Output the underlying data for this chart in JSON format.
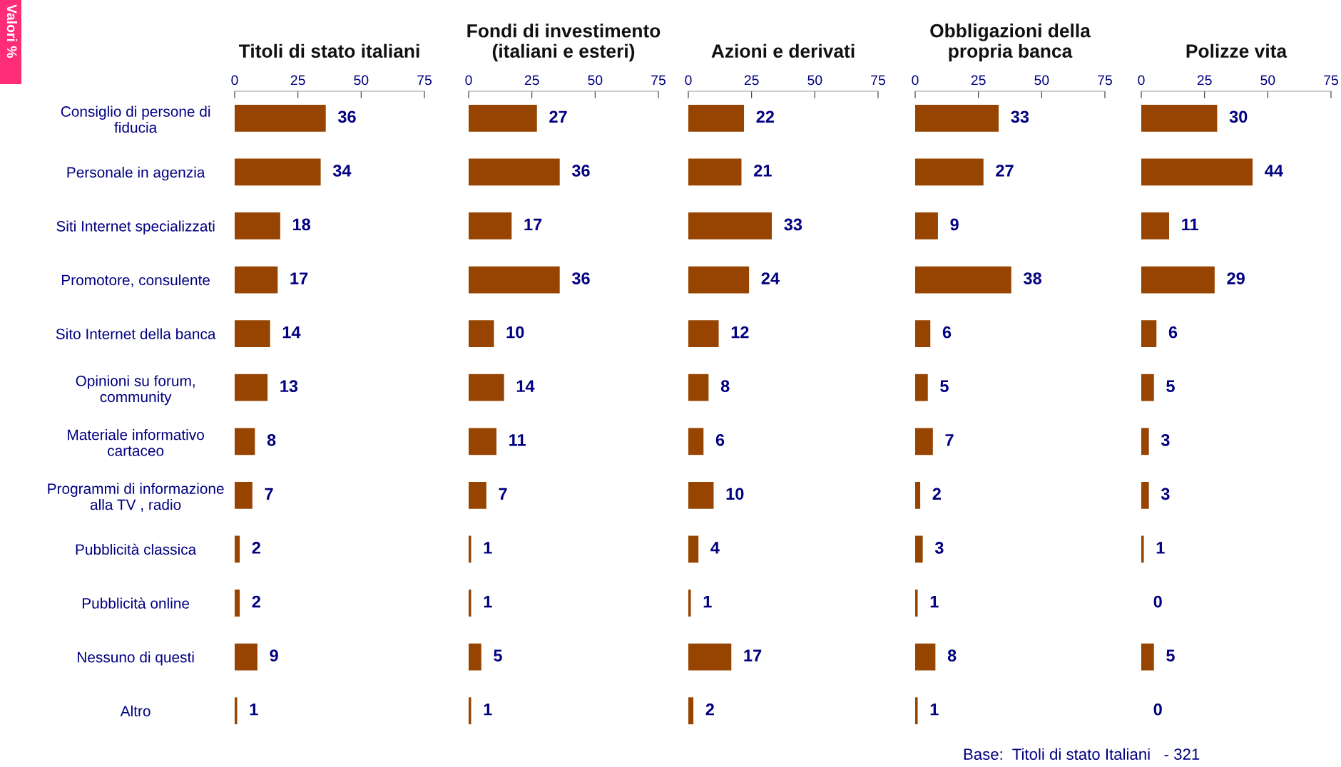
{
  "chart_data": [
    {
      "type": "bar",
      "orientation": "horizontal",
      "title": "Titoli di stato italiani",
      "categories": [
        "Consiglio di persone di\nfiducia",
        "Personale in agenzia",
        "Siti Internet specializzati",
        "Promotore, consulente",
        "Sito Internet della banca",
        "Opinioni su forum,\ncommunity",
        "Materiale informativo\ncartaceo",
        "Programmi di informazione\nalla TV , radio",
        "Pubblicità classica",
        "Pubblicità online",
        "Nessuno di questi",
        "Altro"
      ],
      "values": [
        36,
        34,
        18,
        17,
        14,
        13,
        8,
        7,
        2,
        2,
        9,
        1
      ],
      "color": "#964400",
      "xlim": [
        0,
        75
      ],
      "xticks": [
        0,
        25,
        50,
        75
      ],
      "data_labels": true,
      "annotations": [
        "Valori %"
      ]
    },
    {
      "type": "bar",
      "orientation": "horizontal",
      "title": "Fondi di investimento\n(italiani e esteri)",
      "categories": [
        null,
        null,
        null,
        null,
        null,
        null,
        null,
        null,
        null,
        null,
        null,
        null
      ],
      "values": [
        27,
        36,
        17,
        36,
        10,
        14,
        11,
        7,
        1,
        1,
        5,
        1
      ],
      "color": "#964400",
      "xlim": [
        0,
        75
      ],
      "xticks": [
        0,
        25,
        50,
        75
      ],
      "data_labels": true
    },
    {
      "type": "bar",
      "orientation": "horizontal",
      "title": "Azioni e derivati",
      "categories": [
        null,
        null,
        null,
        null,
        null,
        null,
        null,
        null,
        null,
        null,
        null,
        null
      ],
      "values": [
        22,
        21,
        33,
        24,
        12,
        8,
        6,
        10,
        4,
        1,
        17,
        2
      ],
      "color": "#964400",
      "xlim": [
        0,
        75
      ],
      "xticks": [
        0,
        25,
        50,
        75
      ],
      "data_labels": true
    },
    {
      "type": "bar",
      "orientation": "horizontal",
      "title": "Obbligazioni della\npropria banca",
      "categories": [
        null,
        null,
        null,
        null,
        null,
        null,
        null,
        null,
        null,
        null,
        null,
        null
      ],
      "values": [
        33,
        27,
        9,
        38,
        6,
        5,
        7,
        2,
        3,
        1,
        8,
        1
      ],
      "color": "#964400",
      "xlim": [
        0,
        75
      ],
      "xticks": [
        0,
        25,
        50,
        75
      ],
      "data_labels": true
    },
    {
      "type": "bar",
      "orientation": "horizontal",
      "title": "Polizze vita",
      "categories": [
        null,
        null,
        null,
        null,
        null,
        null,
        null,
        null,
        null,
        null,
        null,
        null
      ],
      "values": [
        30,
        44,
        11,
        29,
        6,
        5,
        3,
        3,
        1,
        0,
        5,
        0
      ],
      "color": "#964400",
      "xlim": [
        0,
        75
      ],
      "xticks": [
        0,
        25,
        50,
        75
      ],
      "data_labels": true,
      "annotations": [
        "Base:  Titoli di stato Italiani   - 321"
      ]
    }
  ]
}
